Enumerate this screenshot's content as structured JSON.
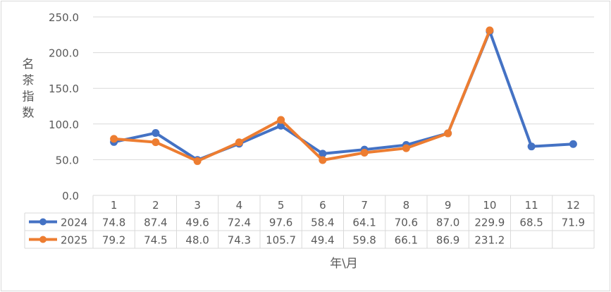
{
  "chart_data": {
    "type": "line",
    "ylabel": "名茶指数",
    "xlabel": "年\\月",
    "ylim": [
      0,
      250
    ],
    "yticks": [
      "0.0",
      "50.0",
      "100.0",
      "150.0",
      "200.0",
      "250.0"
    ],
    "categories": [
      "1",
      "2",
      "3",
      "4",
      "5",
      "6",
      "7",
      "8",
      "9",
      "10",
      "11",
      "12"
    ],
    "grid": "horizontal",
    "legend": "data-table",
    "series": [
      {
        "name": "2024",
        "color": "#4472C4",
        "values": [
          74.8,
          87.4,
          49.6,
          72.4,
          97.6,
          58.4,
          64.1,
          70.6,
          87.0,
          229.9,
          68.5,
          71.9
        ],
        "labels": [
          "74.8",
          "87.4",
          "49.6",
          "72.4",
          "97.6",
          "58.4",
          "64.1",
          "70.6",
          "87.0",
          "229.9",
          "68.5",
          "71.9"
        ]
      },
      {
        "name": "2025",
        "color": "#ED7D31",
        "values": [
          79.2,
          74.5,
          48.0,
          74.3,
          105.7,
          49.4,
          59.8,
          66.1,
          86.9,
          231.2,
          null,
          null
        ],
        "labels": [
          "79.2",
          "74.5",
          "48.0",
          "74.3",
          "105.7",
          "49.4",
          "59.8",
          "66.1",
          "86.9",
          "231.2",
          "",
          ""
        ]
      }
    ]
  }
}
